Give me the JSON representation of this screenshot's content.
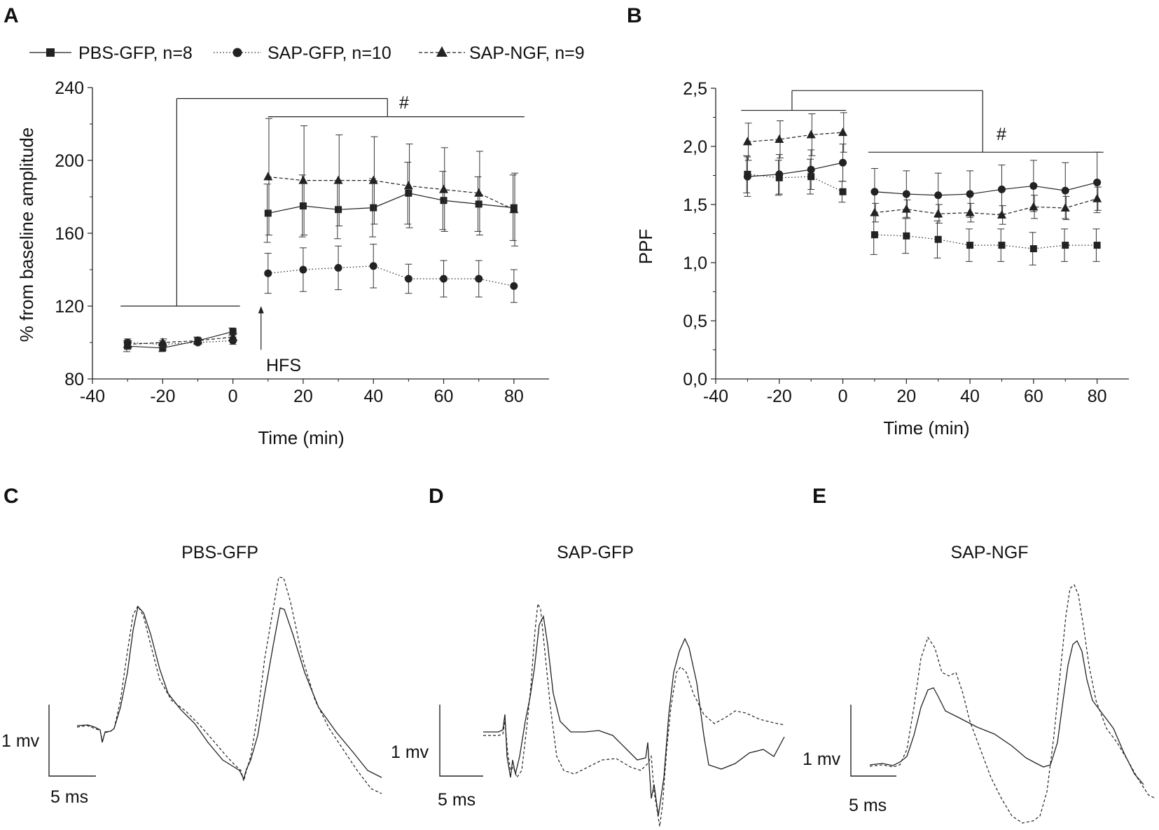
{
  "panel_labels": {
    "a": "A",
    "b": "B",
    "c": "C",
    "d": "D",
    "e": "E"
  },
  "legend": [
    {
      "name": "PBS-GFP, n=8",
      "marker": "square",
      "dash": "solid"
    },
    {
      "name": "SAP-GFP, n=10",
      "marker": "circle",
      "dash": "dotted"
    },
    {
      "name": "SAP-NGF, n=9",
      "marker": "triangle",
      "dash": "dashed"
    }
  ],
  "chart_data": [
    {
      "id": "A",
      "type": "line",
      "xlabel": "Time (min)",
      "ylabel": "% from baseline amplitude",
      "xlim": [
        -40,
        90
      ],
      "ylim": [
        80,
        240
      ],
      "xticks": [
        -40,
        -20,
        0,
        20,
        40,
        60,
        80
      ],
      "yticks": [
        80,
        120,
        160,
        200,
        240
      ],
      "x": [
        -30,
        -20,
        -10,
        0,
        10,
        20,
        30,
        40,
        50,
        60,
        70,
        80
      ],
      "series": [
        {
          "name": "PBS-GFP, n=8",
          "marker": "square",
          "dash": "solid",
          "values": [
            98,
            97,
            101,
            106,
            171,
            175,
            173,
            174,
            182,
            178,
            176,
            174
          ],
          "errors": [
            3,
            2,
            2,
            2,
            16,
            17,
            16,
            16,
            17,
            16,
            15,
            18
          ]
        },
        {
          "name": "SAP-GFP, n=10",
          "marker": "circle",
          "dash": "dotted",
          "values": [
            100,
            99,
            100,
            101,
            138,
            140,
            141,
            142,
            135,
            135,
            135,
            131
          ],
          "errors": [
            2,
            2,
            1,
            2,
            11,
            12,
            12,
            12,
            8,
            10,
            10,
            9
          ]
        },
        {
          "name": "SAP-NGF, n=9",
          "marker": "triangle",
          "dash": "dashed",
          "values": [
            99,
            100,
            101,
            103,
            191,
            189,
            189,
            189,
            186,
            184,
            182,
            173
          ],
          "errors": [
            2,
            2,
            1,
            2,
            32,
            30,
            25,
            24,
            23,
            23,
            23,
            20
          ]
        }
      ],
      "annotations": {
        "stimulus": "HFS",
        "significance": "#"
      }
    },
    {
      "id": "B",
      "type": "line",
      "xlabel": "Time (min)",
      "ylabel": "PPF",
      "xlim": [
        -40,
        90
      ],
      "ylim": [
        0,
        2.5
      ],
      "xticks": [
        -40,
        -20,
        0,
        20,
        40,
        60,
        80
      ],
      "xtick_labels": [
        "-40",
        "-20",
        "0",
        "20",
        "40",
        "60",
        "80"
      ],
      "yticks": [
        0,
        0.5,
        1.0,
        1.5,
        2.0,
        2.5
      ],
      "ytick_labels": [
        "0,0",
        "0,5",
        "1,0",
        "1,5",
        "2,0",
        "2,5"
      ],
      "x": [
        -30,
        -20,
        -10,
        0,
        10,
        20,
        30,
        40,
        50,
        60,
        70,
        80
      ],
      "series": [
        {
          "name": "PBS-GFP, n=8",
          "marker": "square",
          "dash": "dotted",
          "values": [
            1.76,
            1.73,
            1.74,
            1.61,
            1.24,
            1.23,
            1.2,
            1.15,
            1.15,
            1.12,
            1.15,
            1.15
          ],
          "errors": [
            0.16,
            0.15,
            0.15,
            0.09,
            0.17,
            0.15,
            0.16,
            0.14,
            0.14,
            0.14,
            0.14,
            0.14
          ]
        },
        {
          "name": "SAP-GFP, n=10",
          "marker": "circle",
          "dash": "solid",
          "values": [
            1.74,
            1.76,
            1.8,
            1.86,
            1.61,
            1.59,
            1.58,
            1.59,
            1.63,
            1.66,
            1.62,
            1.69
          ],
          "errors": [
            0.17,
            0.17,
            0.17,
            0.16,
            0.2,
            0.2,
            0.19,
            0.2,
            0.21,
            0.22,
            0.24,
            0.26
          ]
        },
        {
          "name": "SAP-NGF, n=9",
          "marker": "triangle",
          "dash": "dashed",
          "values": [
            2.04,
            2.06,
            2.1,
            2.12,
            1.43,
            1.46,
            1.42,
            1.43,
            1.41,
            1.48,
            1.47,
            1.55
          ],
          "errors": [
            0.16,
            0.16,
            0.18,
            0.17,
            0.08,
            0.08,
            0.08,
            0.08,
            0.08,
            0.1,
            0.1,
            0.1
          ]
        }
      ],
      "annotations": {
        "significance": "#"
      }
    }
  ],
  "traces": [
    {
      "id": "C",
      "title": "PBS-GFP",
      "scale_v": "1 mv",
      "scale_t": "5 ms"
    },
    {
      "id": "D",
      "title": "SAP-GFP",
      "scale_v": "1 mv",
      "scale_t": "5 ms"
    },
    {
      "id": "E",
      "title": "SAP-NGF",
      "scale_v": "1 mv",
      "scale_t": "5 ms"
    }
  ]
}
